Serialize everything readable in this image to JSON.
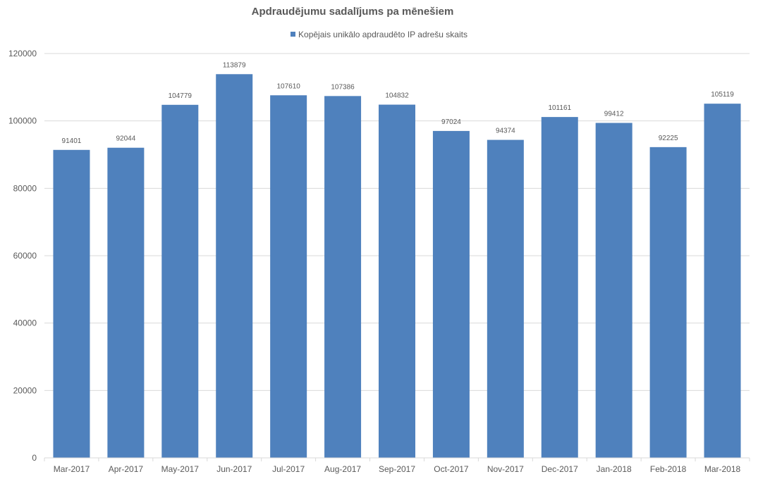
{
  "chart_data": {
    "type": "bar",
    "title": "Apdraudējumu sadalījums pa mēnešiem",
    "xlabel": "",
    "ylabel": "",
    "categories": [
      "Mar-2017",
      "Apr-2017",
      "May-2017",
      "Jun-2017",
      "Jul-2017",
      "Aug-2017",
      "Sep-2017",
      "Oct-2017",
      "Nov-2017",
      "Dec-2017",
      "Jan-2018",
      "Feb-2018",
      "Mar-2018"
    ],
    "series": [
      {
        "name": "Kopējais unikālo apdraudēto IP adrešu skaits",
        "values": [
          91401,
          92044,
          104779,
          113879,
          107610,
          107386,
          104832,
          97024,
          94374,
          101161,
          99412,
          92225,
          105119
        ],
        "color": "#4F81BD"
      }
    ],
    "ylim": [
      0,
      120000
    ],
    "yticks": [
      0,
      20000,
      40000,
      60000,
      80000,
      100000,
      120000
    ],
    "grid": true,
    "legend_position": "top",
    "data_labels": true,
    "colors": {
      "gridline": "#D9D9D9",
      "text": "#595959"
    }
  }
}
